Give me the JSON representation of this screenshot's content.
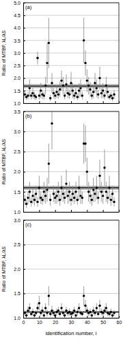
{
  "chart_data": [
    {
      "type": "scatter",
      "title": "(a)",
      "ylabel": "Ratio of MTBF, λL/λS",
      "color": "#000000",
      "grid": true,
      "tick_labels": "y",
      "xlim": [
        0,
        60
      ],
      "xticks": [
        0,
        10,
        20,
        30,
        40,
        50,
        60
      ],
      "ylim": [
        1,
        5
      ],
      "yticks": [
        {
          "value": 1,
          "label": "1.0"
        },
        1.5,
        {
          "value": 2,
          "label": "2.0"
        },
        2.5,
        {
          "value": 3,
          "label": "3.0"
        },
        3.5,
        {
          "value": 4,
          "label": "4.0"
        },
        4.5,
        {
          "value": 5,
          "label": "5.0"
        }
      ],
      "reference_line": 1.68,
      "reference_band": [
        1.6,
        1.76
      ],
      "x": [
        1,
        2,
        3,
        4,
        5,
        6,
        7,
        8,
        9,
        10,
        11,
        12,
        13,
        14,
        15,
        16,
        17,
        18,
        19,
        20,
        21,
        22,
        23,
        24,
        25,
        26,
        27,
        28,
        29,
        30,
        31,
        32,
        33,
        34,
        35,
        36,
        37,
        38,
        39,
        40,
        41,
        42,
        43,
        44,
        45,
        46,
        47,
        48,
        49,
        50,
        51,
        52,
        53,
        54,
        55,
        56,
        57
      ],
      "values": [
        1.35,
        1.25,
        1.3,
        1.6,
        1.3,
        1.4,
        1.3,
        1.25,
        2.8,
        1.3,
        1.5,
        1.35,
        1.3,
        1.7,
        2.6,
        3.4,
        1.2,
        1.8,
        1.4,
        1.3,
        1.45,
        1.35,
        1.55,
        1.9,
        1.7,
        1.3,
        1.75,
        1.4,
        1.35,
        1.8,
        1.5,
        1.3,
        1.4,
        1.25,
        1.5,
        1.6,
        1.3,
        3.5,
        2.6,
        1.9,
        1.7,
        1.55,
        1.3,
        1.45,
        1.8,
        1.6,
        1.35,
        2.0,
        1.4,
        1.5,
        1.3,
        1.7,
        1.45,
        1.25,
        1.3,
        1.2,
        1.35
      ],
      "errors": [
        0.15,
        0.12,
        0.15,
        0.35,
        0.15,
        0.2,
        0.15,
        0.12,
        0.25,
        0.15,
        0.3,
        0.18,
        0.15,
        0.35,
        0.8,
        1.0,
        0.12,
        0.4,
        0.2,
        0.15,
        0.25,
        0.18,
        0.3,
        0.4,
        0.35,
        0.15,
        0.4,
        0.2,
        0.18,
        0.45,
        0.3,
        0.15,
        0.2,
        0.12,
        0.3,
        0.35,
        0.15,
        0.9,
        0.5,
        0.45,
        0.35,
        0.3,
        0.15,
        0.25,
        0.4,
        0.35,
        0.18,
        0.45,
        0.2,
        0.3,
        0.15,
        0.35,
        0.25,
        0.12,
        0.15,
        0.12,
        0.18
      ]
    },
    {
      "type": "scatter",
      "title": "(b)",
      "ylabel": "Ratio of MTBF, λL/λS",
      "color": "#000000",
      "grid": true,
      "tick_labels": "y",
      "xlim": [
        0,
        60
      ],
      "xticks": [
        0,
        10,
        20,
        30,
        40,
        50,
        60
      ],
      "ylim": [
        1,
        3.5
      ],
      "yticks": [
        {
          "value": 1,
          "label": "1.0"
        },
        1.5,
        {
          "value": 2,
          "label": "2.0"
        },
        2.5,
        {
          "value": 3,
          "label": "3.0"
        },
        3.5
      ],
      "reference_line": 1.6,
      "reference_band": [
        1.55,
        1.65
      ],
      "x": [
        1,
        2,
        3,
        4,
        5,
        6,
        7,
        8,
        9,
        10,
        11,
        12,
        13,
        14,
        15,
        16,
        17,
        18,
        19,
        20,
        21,
        22,
        23,
        24,
        25,
        26,
        27,
        28,
        29,
        30,
        31,
        32,
        33,
        34,
        35,
        36,
        37,
        38,
        39,
        40,
        41,
        42,
        43,
        44,
        45,
        46,
        47,
        48,
        49,
        50,
        51,
        52,
        53,
        54,
        55,
        56,
        57
      ],
      "values": [
        1.3,
        1.2,
        1.35,
        1.5,
        1.25,
        1.4,
        1.3,
        1.45,
        1.25,
        1.6,
        1.35,
        1.3,
        1.5,
        1.4,
        1.55,
        2.2,
        1.3,
        3.2,
        1.45,
        1.35,
        1.4,
        1.5,
        1.3,
        1.6,
        1.45,
        1.35,
        1.7,
        1.4,
        1.5,
        1.3,
        1.45,
        1.35,
        1.5,
        1.3,
        1.6,
        1.4,
        1.35,
        2.7,
        2.7,
        2.0,
        1.5,
        1.4,
        1.3,
        1.55,
        1.45,
        1.6,
        1.35,
        1.9,
        1.5,
        1.4,
        2.1,
        1.5,
        1.35,
        1.6,
        1.3,
        1.45,
        1.25
      ],
      "errors": [
        0.12,
        0.1,
        0.15,
        0.25,
        0.12,
        0.2,
        0.15,
        0.2,
        0.12,
        0.3,
        0.15,
        0.12,
        0.25,
        0.2,
        0.3,
        0.5,
        0.15,
        0.65,
        0.2,
        0.15,
        0.2,
        0.25,
        0.15,
        0.3,
        0.2,
        0.15,
        0.35,
        0.2,
        0.25,
        0.15,
        0.2,
        0.15,
        0.25,
        0.12,
        0.3,
        0.2,
        0.15,
        0.5,
        0.45,
        0.35,
        0.25,
        0.2,
        0.15,
        0.3,
        0.2,
        0.3,
        0.15,
        0.4,
        0.25,
        0.2,
        0.45,
        0.25,
        0.15,
        0.3,
        0.15,
        0.2,
        0.12
      ]
    },
    {
      "type": "scatter",
      "title": "(c)",
      "ylabel": "Ratio of MTBF, λL/λS",
      "xlabel": "identification number, i",
      "color": "#000000",
      "grid": true,
      "xlim": [
        0,
        60
      ],
      "xticks": [
        0,
        10,
        20,
        30,
        40,
        50,
        60
      ],
      "ylim": [
        1,
        3
      ],
      "yticks": [
        {
          "value": 1,
          "label": "1.0"
        },
        1.5,
        {
          "value": 2,
          "label": "2.0"
        },
        2.5,
        {
          "value": 3,
          "label": "3.0"
        }
      ],
      "reference_line": 1.12,
      "reference_band": [
        1.1,
        1.14
      ],
      "x": [
        1,
        2,
        3,
        4,
        5,
        6,
        7,
        8,
        9,
        10,
        11,
        12,
        13,
        14,
        15,
        16,
        17,
        18,
        19,
        20,
        21,
        22,
        23,
        24,
        25,
        26,
        27,
        28,
        29,
        30,
        31,
        32,
        33,
        34,
        35,
        36,
        37,
        38,
        39,
        40,
        41,
        42,
        43,
        44,
        45,
        46,
        47,
        48,
        49,
        50,
        51,
        52,
        53,
        54,
        55,
        56,
        57
      ],
      "values": [
        1.1,
        1.05,
        1.15,
        1.2,
        1.08,
        1.12,
        1.05,
        1.1,
        1.2,
        1.3,
        1.1,
        1.15,
        1.05,
        1.2,
        1.1,
        1.45,
        1.08,
        1.15,
        1.1,
        1.05,
        1.12,
        1.15,
        1.08,
        1.2,
        1.1,
        1.05,
        1.15,
        1.1,
        1.12,
        1.08,
        1.1,
        1.15,
        1.05,
        1.12,
        1.2,
        1.1,
        1.08,
        1.45,
        1.25,
        1.15,
        1.1,
        1.12,
        1.05,
        1.15,
        1.1,
        1.2,
        1.08,
        1.25,
        1.12,
        1.1,
        1.15,
        1.2,
        1.1,
        1.08,
        1.12,
        1.05,
        1.1
      ],
      "errors": [
        0.06,
        0.05,
        0.08,
        0.1,
        0.05,
        0.07,
        0.05,
        0.06,
        0.1,
        0.15,
        0.06,
        0.08,
        0.05,
        0.1,
        0.07,
        0.2,
        0.05,
        0.1,
        0.06,
        0.05,
        0.07,
        0.08,
        0.05,
        0.1,
        0.06,
        0.05,
        0.08,
        0.06,
        0.07,
        0.05,
        0.06,
        0.08,
        0.05,
        0.07,
        0.1,
        0.06,
        0.05,
        0.2,
        0.12,
        0.08,
        0.06,
        0.07,
        0.05,
        0.08,
        0.06,
        0.1,
        0.05,
        0.12,
        0.07,
        0.06,
        0.08,
        0.1,
        0.06,
        0.05,
        0.07,
        0.05,
        0.06
      ]
    }
  ]
}
